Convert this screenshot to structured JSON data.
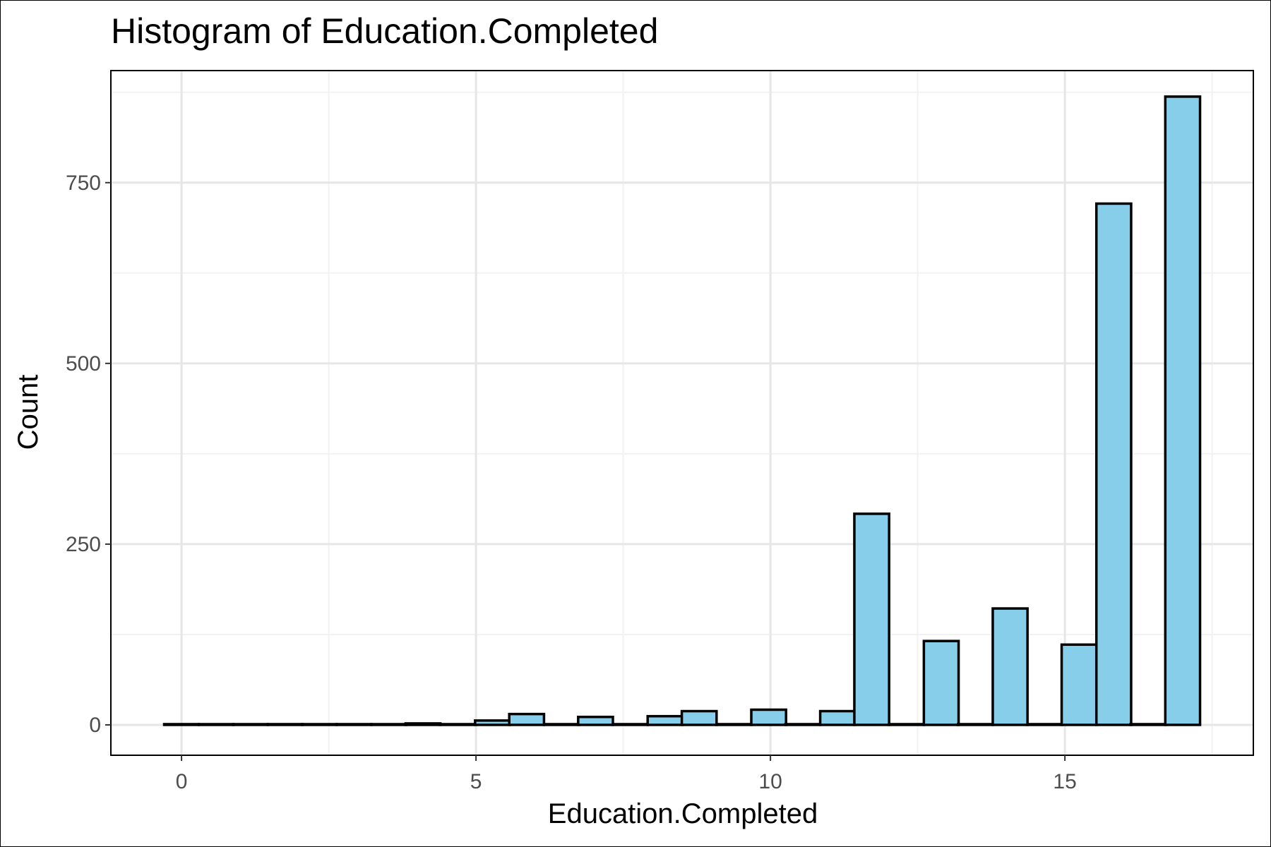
{
  "chart_data": {
    "type": "bar",
    "title": "Histogram of Education.Completed",
    "xlabel": "Education.Completed",
    "ylabel": "Count",
    "xlim": [
      -1.2,
      18.2
    ],
    "ylim": [
      -42,
      905
    ],
    "bin_width": 0.59,
    "x_ticks": [
      0,
      5,
      10,
      15
    ],
    "y_ticks": [
      0,
      250,
      500,
      750
    ],
    "bins": [
      {
        "x": 0.0,
        "count": 1
      },
      {
        "x": 0.59,
        "count": 0
      },
      {
        "x": 1.17,
        "count": 0
      },
      {
        "x": 1.76,
        "count": 1
      },
      {
        "x": 2.34,
        "count": 0
      },
      {
        "x": 2.93,
        "count": 1
      },
      {
        "x": 3.52,
        "count": 0
      },
      {
        "x": 4.1,
        "count": 2
      },
      {
        "x": 4.69,
        "count": 0
      },
      {
        "x": 5.28,
        "count": 6
      },
      {
        "x": 5.86,
        "count": 15
      },
      {
        "x": 6.45,
        "count": 0
      },
      {
        "x": 7.03,
        "count": 11
      },
      {
        "x": 7.62,
        "count": 0
      },
      {
        "x": 8.21,
        "count": 12
      },
      {
        "x": 8.79,
        "count": 19
      },
      {
        "x": 9.38,
        "count": 0
      },
      {
        "x": 9.97,
        "count": 21
      },
      {
        "x": 10.55,
        "count": 0
      },
      {
        "x": 11.14,
        "count": 19
      },
      {
        "x": 11.72,
        "count": 292
      },
      {
        "x": 12.31,
        "count": 0
      },
      {
        "x": 12.9,
        "count": 116
      },
      {
        "x": 13.48,
        "count": 0
      },
      {
        "x": 14.07,
        "count": 161
      },
      {
        "x": 14.66,
        "count": 0
      },
      {
        "x": 15.24,
        "count": 111
      },
      {
        "x": 15.83,
        "count": 721
      },
      {
        "x": 16.41,
        "count": 0
      },
      {
        "x": 17.0,
        "count": 869
      }
    ],
    "grid": true,
    "colors": {
      "bar_fill": "#87ceeb",
      "bar_stroke": "#000000",
      "grid_major": "#e6e6e6",
      "grid_minor": "#f2f2f2",
      "panel_border": "#000000"
    }
  }
}
